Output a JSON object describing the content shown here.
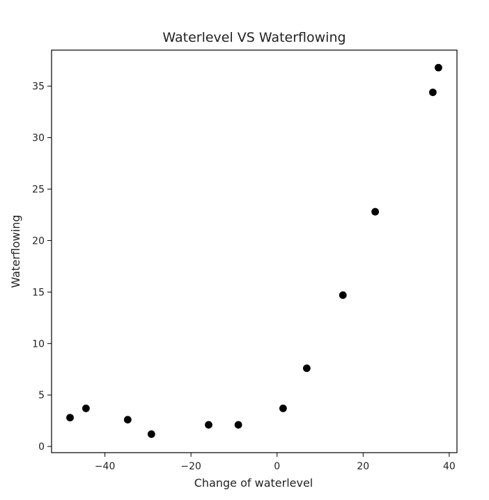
{
  "chart_data": {
    "type": "scatter",
    "title": "Waterlevel VS Waterflowing",
    "xlabel": "Change of waterlevel",
    "ylabel": "Waterflowing",
    "xlim": [
      -52.4,
      41.8
    ],
    "ylim": [
      -0.6,
      38.5
    ],
    "xticks": [
      -40,
      -20,
      0,
      20,
      40
    ],
    "xtick_labels": [
      "−40",
      "−20",
      "0",
      "20",
      "40"
    ],
    "yticks": [
      0,
      5,
      10,
      15,
      20,
      25,
      30,
      35
    ],
    "ytick_labels": [
      "0",
      "5",
      "10",
      "15",
      "20",
      "25",
      "30",
      "35"
    ],
    "grid": false,
    "legend": "none",
    "marker_color": "#000000",
    "points": [
      {
        "x": -48.1,
        "y": 2.8
      },
      {
        "x": -44.4,
        "y": 3.7
      },
      {
        "x": -34.7,
        "y": 2.6
      },
      {
        "x": -29.2,
        "y": 1.2
      },
      {
        "x": -15.9,
        "y": 2.1
      },
      {
        "x": -9.0,
        "y": 2.1
      },
      {
        "x": 1.4,
        "y": 3.7
      },
      {
        "x": 6.9,
        "y": 7.6
      },
      {
        "x": 15.3,
        "y": 14.7
      },
      {
        "x": 22.8,
        "y": 22.8
      },
      {
        "x": 36.2,
        "y": 34.4
      },
      {
        "x": 37.5,
        "y": 36.8
      }
    ]
  }
}
